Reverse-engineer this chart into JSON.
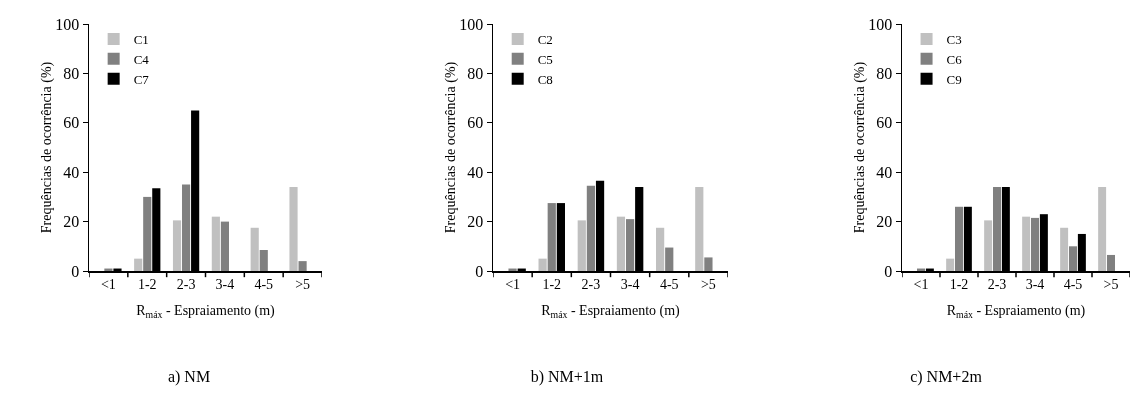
{
  "chart_data": [
    {
      "type": "bar",
      "title": "a) NM",
      "xlabel": "R$_{máx}$ - Espraiamento (m)",
      "ylabel": "Frequências de ocorrência (%)",
      "categories": [
        "<1",
        "1-2",
        "2-3",
        "3-4",
        "4-5",
        ">5"
      ],
      "ylim": [
        0,
        100
      ],
      "yticks": [
        0,
        20,
        40,
        60,
        80,
        100
      ],
      "legend": "top left",
      "series": [
        {
          "name": "C1",
          "color": "#c0c0c0",
          "values": [
            0,
            5,
            20.5,
            22,
            17.5,
            34
          ]
        },
        {
          "name": "C4",
          "color": "#808080",
          "values": [
            1,
            30,
            35,
            20,
            8.5,
            4
          ]
        },
        {
          "name": "C7",
          "color": "#000000",
          "values": [
            1,
            33.5,
            65,
            0,
            0,
            0
          ]
        }
      ]
    },
    {
      "type": "bar",
      "title": "b) NM+1m",
      "xlabel": "R$_{máx}$ - Espraiamento (m)",
      "ylabel": "Frequências de ocorrência (%)",
      "categories": [
        "<1",
        "1-2",
        "2-3",
        "3-4",
        "4-5",
        ">5"
      ],
      "ylim": [
        0,
        100
      ],
      "yticks": [
        0,
        20,
        40,
        60,
        80,
        100
      ],
      "legend": "top left",
      "series": [
        {
          "name": "C2",
          "color": "#c0c0c0",
          "values": [
            0,
            5,
            20.5,
            22,
            17.5,
            34
          ]
        },
        {
          "name": "C5",
          "color": "#808080",
          "values": [
            1,
            27.5,
            34.5,
            21,
            9.5,
            5.5
          ]
        },
        {
          "name": "C8",
          "color": "#000000",
          "values": [
            1,
            27.5,
            36.5,
            34,
            0,
            0
          ]
        }
      ]
    },
    {
      "type": "bar",
      "title": "c) NM+2m",
      "xlabel": "R$_{máx}$ - Espraiamento (m)",
      "ylabel": "Frequências de ocorrência (%)",
      "categories": [
        "<1",
        "1-2",
        "2-3",
        "3-4",
        "4-5",
        ">5"
      ],
      "ylim": [
        0,
        100
      ],
      "yticks": [
        0,
        20,
        40,
        60,
        80,
        100
      ],
      "legend": "top left",
      "series": [
        {
          "name": "C3",
          "color": "#c0c0c0",
          "values": [
            0,
            5,
            20.5,
            22,
            17.5,
            34
          ]
        },
        {
          "name": "C6",
          "color": "#808080",
          "values": [
            1,
            26,
            34,
            21.5,
            10,
            6.5
          ]
        },
        {
          "name": "C9",
          "color": "#000000",
          "values": [
            1,
            26,
            34,
            23,
            15,
            0
          ]
        }
      ]
    }
  ]
}
